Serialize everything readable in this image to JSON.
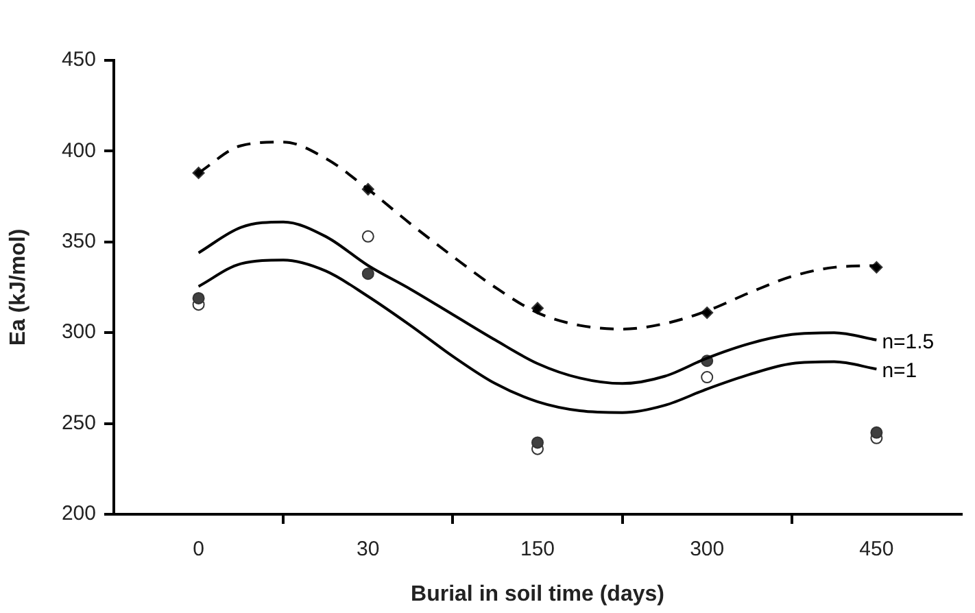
{
  "chart_data": {
    "type": "scatter",
    "xlabel": "Burial in soil time (days)",
    "ylabel": "Ea (kJ/mol)",
    "categories": [
      null,
      null,
      "0",
      null,
      null,
      null,
      "30",
      null,
      null,
      null,
      "150",
      null,
      null,
      null,
      "300",
      null,
      null,
      null,
      "450",
      null,
      null
    ],
    "ylim": [
      200,
      450
    ],
    "yticks": [
      200,
      250,
      300,
      350,
      400,
      450
    ],
    "grid": false,
    "legend": false,
    "series": [
      {
        "type": "line",
        "color": "#000000",
        "line_style": "dashed",
        "marker": "none",
        "values": [
          null,
          null,
          388,
          403,
          405,
          396,
          379,
          360,
          342,
          325,
          311,
          304,
          302,
          305,
          312,
          322,
          331,
          336,
          337,
          null,
          null
        ]
      },
      {
        "type": "line",
        "name": "n=1.5",
        "color": "#000000",
        "line_style": "solid",
        "marker": "none",
        "values": [
          null,
          null,
          344,
          358,
          361,
          353,
          337,
          324,
          310,
          296,
          283,
          275,
          272,
          276,
          286,
          294,
          299,
          300,
          296,
          null,
          null
        ]
      },
      {
        "type": "line",
        "name": "n=1",
        "color": "#000000",
        "line_style": "solid",
        "marker": "none",
        "values": [
          null,
          null,
          325.5,
          338,
          340,
          334,
          320,
          304,
          287,
          272,
          262,
          257,
          256,
          260,
          269,
          277,
          283,
          284,
          280,
          null,
          null
        ]
      },
      {
        "color": "#000000",
        "marker": "diamond",
        "values": [
          null,
          null,
          388,
          null,
          null,
          null,
          379,
          null,
          null,
          null,
          313.5,
          null,
          null,
          null,
          311,
          null,
          null,
          null,
          336,
          null,
          null
        ]
      },
      {
        "color": "#404040",
        "marker": "circle",
        "values": [
          null,
          null,
          319,
          null,
          null,
          null,
          332.5,
          null,
          null,
          null,
          239.5,
          null,
          null,
          null,
          284.5,
          null,
          null,
          null,
          245,
          null,
          null
        ]
      },
      {
        "color": "#ffffff",
        "marker": "circle",
        "values": [
          null,
          null,
          315.5,
          null,
          null,
          null,
          353,
          null,
          null,
          null,
          236,
          null,
          null,
          null,
          275.5,
          null,
          null,
          null,
          242,
          null,
          null
        ]
      }
    ]
  }
}
